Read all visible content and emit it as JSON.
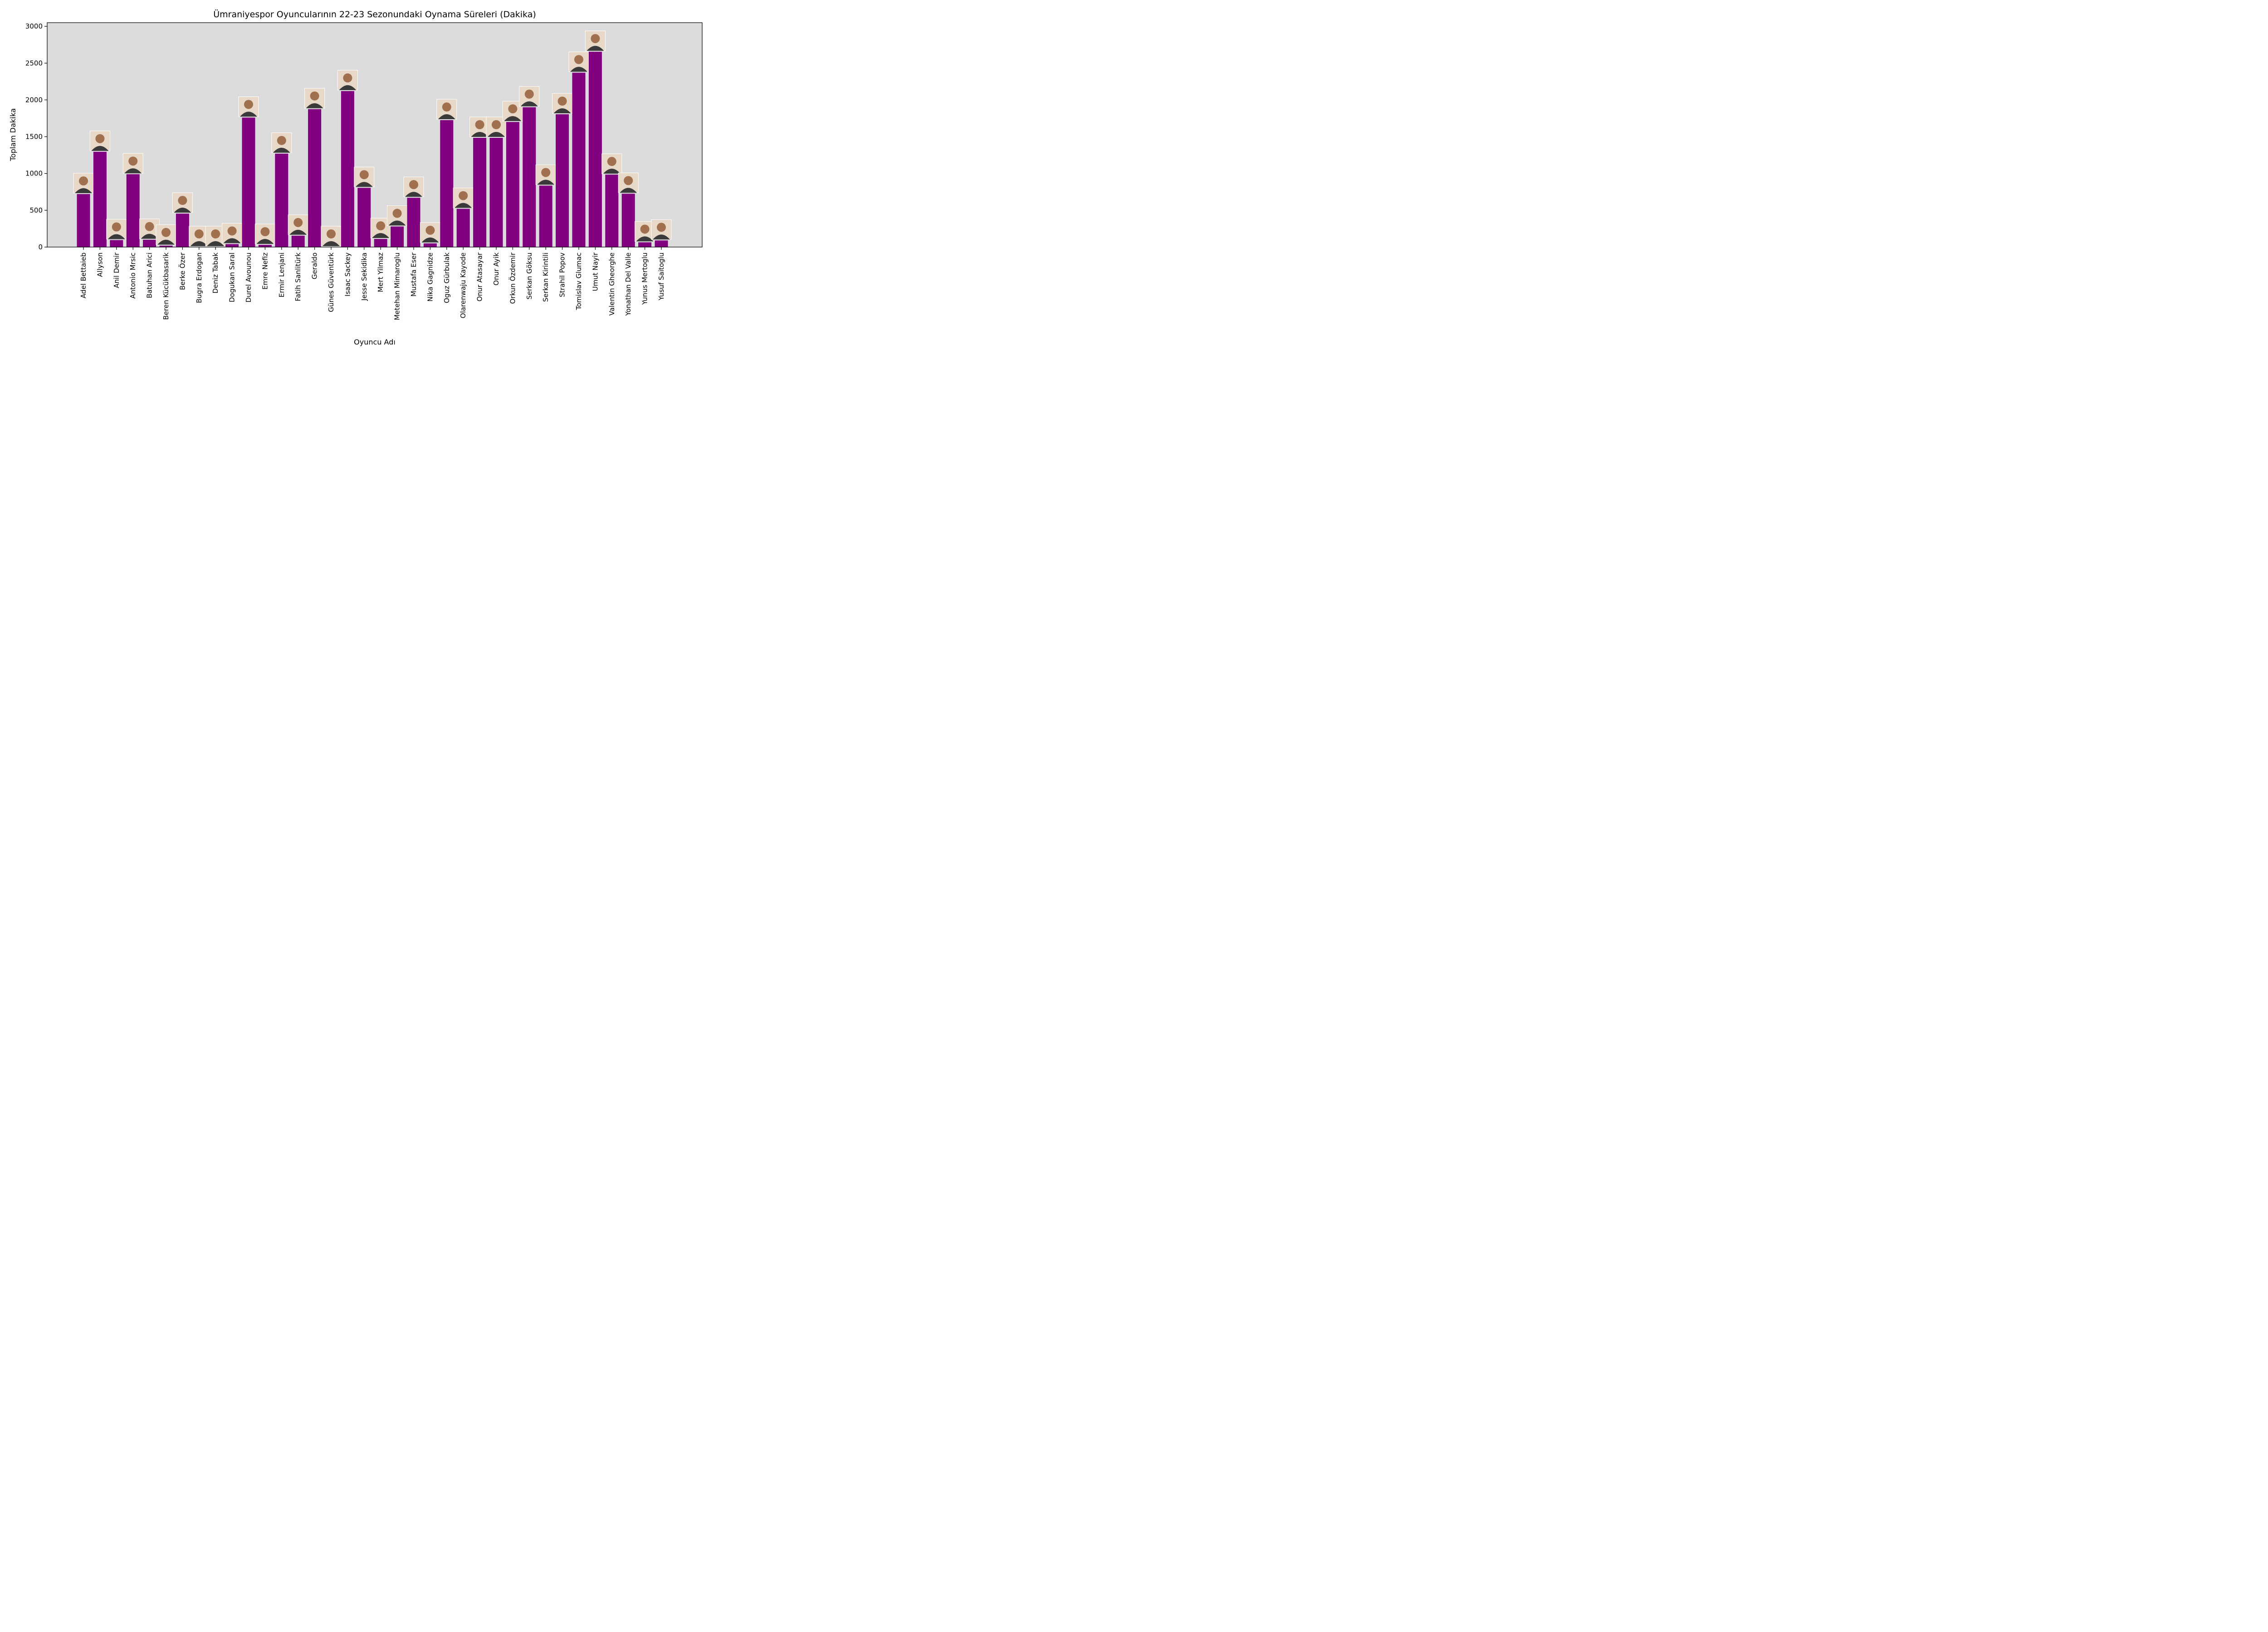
{
  "chart_data": {
    "type": "bar",
    "title": "Ümraniyespor Oyuncularının 22-23 Sezonundaki Oynama Süreleri (Dakika)",
    "xlabel": "Oyuncu Adı",
    "ylabel": "Toplam Dakika",
    "ylim": [
      0,
      3050
    ],
    "yticks": [
      0,
      500,
      1000,
      1500,
      2000,
      2500,
      3000
    ],
    "grid": false,
    "legend": "none",
    "colors": {
      "bar": "#800080",
      "plot_background": "#dcdcdc"
    },
    "bar_annotation": "player photo above each bar",
    "categories": [
      "Adel Bettaieb",
      "Allyson",
      "Anil Demir",
      "Antonio Mrsic",
      "Batuhan Arici",
      "Beren Kücükbasarik",
      "Berke Özer",
      "Bugra Erdogan",
      "Deniz Tabak",
      "Dogukan Saral",
      "Durel Avounou",
      "Emre Nefiz",
      "Ermir Lenjani",
      "Fatih Sanlitürk",
      "Geraldo",
      "Günes Güventürk",
      "Isaac Sackey",
      "Jesse Sekidika",
      "Mert Yilmaz",
      "Metehan Mimaroglu",
      "Mustafa Eser",
      "Nika Gagnidze",
      "Oguz Gürbulak",
      "Olarenwaju Kayode",
      "Onur Atasayar",
      "Onur Ayik",
      "Orkun Özdemir",
      "Serkan Göksu",
      "Serkan Kirintili",
      "Strahil Popov",
      "Tomislav Glumac",
      "Umut Nayir",
      "Valentin Gheorghe",
      "Yonathan Del Valle",
      "Yunus Mertoglu",
      "Yusuf Saitoglu"
    ],
    "values": [
      720,
      1295,
      95,
      990,
      100,
      20,
      455,
      0,
      0,
      40,
      1760,
      30,
      1270,
      155,
      1875,
      0,
      2120,
      805,
      110,
      280,
      670,
      50,
      1725,
      520,
      1485,
      1485,
      1700,
      1900,
      835,
      1805,
      2370,
      2655,
      985,
      725,
      65,
      90
    ]
  }
}
